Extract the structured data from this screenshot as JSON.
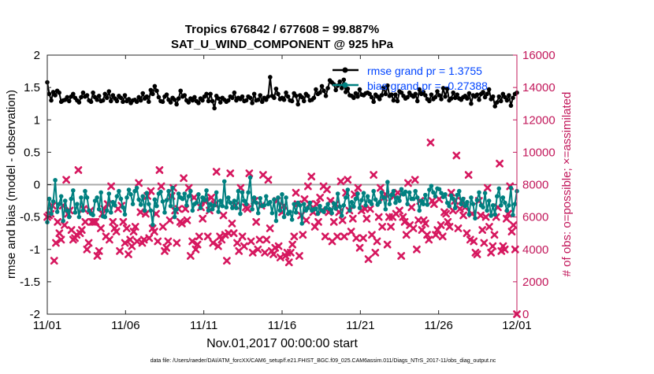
{
  "chart_data": {
    "type": "line",
    "title_line1": "Tropics 676842 / 677608 = 99.887%",
    "title_line2": "SAT_U_WIND_COMPONENT @ 925 hPa",
    "xlabel": "Nov.01,2017 00:00:00 start",
    "ylabel_left": "rmse and bias (model - observation)",
    "ylabel_right": "# of obs: o=possible; ×=assimilated",
    "footnote": "data file: /Users/raeder/DAI/ATM_forcXX/CAM6_setup/f.e21.FHIST_BGC.f09_025.CAM6assim.011/Diags_NTrS_2017-11/obs_diag_output.nc",
    "x_range": [
      0,
      30
    ],
    "x_ticks": [
      0,
      5,
      10,
      15,
      20,
      25,
      30
    ],
    "x_tick_labels": [
      "11/01",
      "11/06",
      "11/11",
      "11/16",
      "11/21",
      "11/26",
      "12/01"
    ],
    "ylim_left": [
      -2,
      2
    ],
    "yticks_left": [
      "2",
      "1.5",
      "1",
      "0.5",
      "0",
      "-0.5",
      "-1",
      "-1.5",
      "-2"
    ],
    "ylim_right": [
      0,
      16000
    ],
    "yticks_right": [
      "16000",
      "14000",
      "12000",
      "10000",
      "8000",
      "6000",
      "4000",
      "2000",
      "0"
    ],
    "legend": [
      {
        "label": "rmse grand pr = 1.3755",
        "color": "#000000"
      },
      {
        "label": "bias grand pr = -0.27388",
        "color": "#008080"
      }
    ],
    "colors": {
      "rmse": "#000000",
      "bias": "#008080",
      "obs": "#d6185f",
      "axis_right": "#c2185b",
      "legend_text": "#0044ff",
      "zero_line": "#aaaaaa"
    },
    "series": [
      {
        "name": "rmse",
        "values": [
          1.58,
          1.4,
          1.3,
          1.43,
          1.38,
          1.45,
          1.42,
          1.28,
          1.3,
          1.31,
          1.35,
          1.29,
          1.36,
          1.4,
          1.34,
          1.3,
          1.27,
          1.35,
          1.42,
          1.36,
          1.38,
          1.3,
          1.28,
          1.42,
          1.35,
          1.31,
          1.37,
          1.29,
          1.3,
          1.4,
          1.34,
          1.44,
          1.29,
          1.38,
          1.33,
          1.29,
          1.37,
          1.34,
          1.28,
          1.38,
          1.29,
          1.32,
          1.26,
          1.3,
          1.31,
          1.28,
          1.35,
          1.3,
          1.41,
          1.33,
          1.36,
          1.28,
          1.46,
          1.4,
          1.52,
          1.45,
          1.35,
          1.29,
          1.28,
          1.36,
          1.39,
          1.31,
          1.27,
          1.34,
          1.31,
          1.24,
          1.33,
          1.45,
          1.36,
          1.38,
          1.3,
          1.27,
          1.33,
          1.3,
          1.35,
          1.29,
          1.26,
          1.33,
          1.3,
          1.36,
          1.4,
          1.29,
          1.4,
          1.29,
          1.18,
          1.37,
          1.33,
          1.27,
          1.34,
          1.31,
          1.28,
          1.3,
          1.36,
          1.34,
          1.42,
          1.3,
          1.34,
          1.32,
          1.36,
          1.29,
          1.3,
          1.36,
          1.34,
          1.26,
          1.4,
          1.3,
          1.31,
          1.38,
          1.28,
          1.34,
          1.31,
          1.36,
          1.66,
          1.37,
          1.34,
          1.48,
          1.4,
          1.32,
          1.34,
          1.31,
          1.42,
          1.36,
          1.3,
          1.29,
          1.41,
          1.37,
          1.24,
          1.38,
          1.35,
          1.29,
          1.4,
          1.37,
          1.3,
          1.31,
          1.34,
          1.47,
          1.4,
          1.42,
          1.52,
          1.45,
          1.37,
          1.49,
          1.61,
          1.58,
          1.55,
          1.46,
          1.53,
          1.59,
          1.49,
          1.62,
          1.43,
          1.48,
          1.38,
          1.37,
          1.34,
          1.41,
          1.36,
          1.47,
          1.39,
          1.38,
          1.41,
          1.42,
          1.4,
          1.35,
          1.28,
          1.39,
          1.36,
          1.32,
          1.38,
          1.5,
          1.4,
          1.53,
          1.37,
          1.39,
          1.3,
          1.39,
          1.29,
          1.44,
          1.42,
          1.37,
          1.33,
          1.35,
          1.42,
          1.38,
          1.36,
          1.4,
          1.29,
          1.47,
          1.4,
          1.43,
          1.38,
          1.32,
          1.29,
          1.39,
          1.32,
          1.35,
          1.44,
          1.38,
          1.32,
          1.49,
          1.36,
          1.48,
          1.3,
          1.33,
          1.42,
          1.34,
          1.39,
          1.33,
          1.31,
          1.35,
          1.37,
          1.33,
          1.41,
          1.25,
          1.38,
          1.36,
          1.39,
          1.31,
          1.4,
          1.43,
          1.35,
          1.4,
          1.47,
          1.32,
          1.36,
          1.21,
          1.27,
          1.36,
          1.29,
          1.4,
          1.35,
          1.3,
          1.38,
          1.22,
          1.34,
          1.4,
          1.42
        ]
      },
      {
        "name": "bias",
        "values": [
          -0.58,
          -0.22,
          -0.45,
          -0.26,
          0.07,
          -0.42,
          -0.3,
          -0.18,
          -0.56,
          -0.25,
          -0.4,
          -0.5,
          -0.22,
          -0.09,
          -0.43,
          -0.3,
          -0.5,
          -0.2,
          -0.4,
          -0.1,
          -0.2,
          -0.4,
          -0.45,
          -0.47,
          -0.25,
          -0.2,
          -0.38,
          -0.12,
          -0.49,
          -0.5,
          -0.4,
          -0.14,
          -0.43,
          -0.27,
          -0.32,
          -0.18,
          -0.1,
          -0.22,
          -0.35,
          -0.46,
          -0.2,
          -0.08,
          -0.15,
          -0.3,
          -0.1,
          -0.05,
          -0.23,
          -0.31,
          -0.18,
          -0.4,
          -0.13,
          -0.3,
          -0.4,
          -0.62,
          -0.23,
          -0.33,
          -0.14,
          -0.11,
          -0.26,
          -0.43,
          -0.24,
          -0.1,
          -0.33,
          -0.05,
          -0.5,
          -0.38,
          -0.14,
          -0.2,
          -0.22,
          -0.14,
          -0.32,
          -0.18,
          -0.1,
          -0.4,
          -0.3,
          -0.28,
          -0.15,
          -0.36,
          -0.2,
          -0.24,
          -0.09,
          -0.4,
          -0.3,
          -0.38,
          -0.32,
          -0.12,
          -0.42,
          -0.25,
          -0.33,
          0.05,
          -0.35,
          -0.2,
          -0.28,
          -0.36,
          -0.25,
          -0.36,
          -0.1,
          -0.45,
          -0.12,
          -0.25,
          -0.3,
          -0.12,
          0.11,
          -0.38,
          -0.2,
          -0.28,
          -0.44,
          -0.21,
          -0.33,
          -0.32,
          -0.18,
          -0.3,
          -0.27,
          -0.44,
          -0.23,
          -0.56,
          -0.2,
          -0.4,
          -0.15,
          -0.5,
          -0.2,
          -0.45,
          -0.42,
          -0.54,
          -0.3,
          -0.43,
          -0.28,
          -0.32,
          -0.6,
          -0.3,
          -0.4,
          -0.36,
          -0.28,
          -0.4,
          -0.38,
          -0.37,
          -0.45,
          -0.33,
          -0.4,
          -0.42,
          -0.36,
          -0.3,
          -0.38,
          -0.44,
          -0.29,
          -0.37,
          -0.14,
          -0.34,
          -0.48,
          -0.32,
          -0.2,
          -0.08,
          -0.4,
          -0.27,
          -0.34,
          -0.22,
          -0.14,
          -0.36,
          -0.24,
          -0.13,
          -0.32,
          -0.18,
          -0.26,
          -0.3,
          -0.1,
          -0.23,
          -0.31,
          -0.27,
          -0.12,
          -0.2,
          -0.38,
          0.04,
          -0.3,
          -0.16,
          -0.1,
          -0.28,
          -0.2,
          -0.25,
          -0.07,
          -0.15,
          -0.11,
          -0.3,
          -0.12,
          -0.22,
          -0.22,
          -0.1,
          -0.2,
          -0.4,
          -0.25,
          -0.3,
          -0.16,
          -0.31,
          -0.08,
          -0.02,
          -0.12,
          -0.18,
          -0.06,
          -0.07,
          -0.13,
          -0.19,
          -0.15,
          -0.28,
          -0.33,
          -0.17,
          -0.22,
          -0.36,
          -0.16,
          -0.1,
          -0.3,
          -0.22,
          -0.33,
          -0.27,
          -0.46,
          -0.2,
          -0.3,
          -0.52,
          -0.24,
          -0.12,
          -0.32,
          -0.35,
          -0.13,
          -0.4,
          -0.25,
          -0.48,
          -0.32,
          -0.46,
          -0.18,
          -0.06,
          -0.32,
          -0.2,
          -0.28,
          -0.4,
          -0.32,
          -0.05,
          -0.47,
          -0.3,
          -0.1
        ]
      },
      {
        "name": "obs_assimilated",
        "values": [
          6000,
          6100,
          6200,
          6700,
          3300,
          4400,
          5700,
          5000,
          4600,
          6700,
          5500,
          8300,
          6200,
          6400,
          5200,
          4600,
          4700,
          4900,
          8900,
          5000,
          5200,
          6500,
          5700,
          4000,
          4400,
          6400,
          5700,
          5700,
          5700,
          3600,
          3900,
          5300,
          6200,
          6500,
          4800,
          6800,
          4600,
          7900,
          5700,
          5300,
          5100,
          6500,
          3900,
          6700,
          5700,
          4400,
          5300,
          3700,
          4600,
          4200,
          5100,
          5400,
          4500,
          8100,
          6300,
          4400,
          4600,
          6200,
          7300,
          4700,
          7600,
          5300,
          5100,
          6200,
          4500,
          8900,
          7900,
          5400,
          3900,
          4100,
          4500,
          5800,
          7300,
          7800,
          6400,
          4400,
          6500,
          5700,
          5600,
          8400,
          6500,
          5800,
          7800,
          3600,
          4500,
          7200,
          4000,
          4300,
          4800,
          6600,
          5900,
          7000,
          7000,
          4800,
          6400,
          7200,
          4400,
          6800,
          8800,
          4200,
          4800,
          4600,
          6100,
          4900,
          3300,
          5000,
          8700,
          5600,
          5000,
          6700,
          4400,
          3900,
          7800,
          4800,
          4200,
          6600,
          6500,
          8700,
          4500,
          3800,
          7000,
          5700,
          4000,
          4600,
          6700,
          8600,
          3800,
          4600,
          8300,
          5300,
          3900,
          3700,
          4100,
          7000,
          4200,
          3500,
          6300,
          6700,
          3600,
          3800,
          3200,
          3800,
          4300,
          4800,
          7500,
          6800,
          3600,
          6100,
          4900,
          7100,
          5800,
          7900,
          6800,
          8500,
          6300,
          5400,
          6800,
          5700,
          7200,
          6400,
          7900,
          4800,
          7700,
          6300,
          7000,
          4500,
          5700,
          6800,
          4800,
          6300,
          8200,
          5800,
          4800,
          7500,
          8300,
          6400,
          5100,
          5900,
          7400,
          4700,
          7800,
          4100,
          6400,
          4700,
          6500,
          5900,
          3400,
          6500,
          4900,
          8600,
          3800,
          4500,
          6000,
          7800,
          5400,
          7200,
          7400,
          4300,
          6000,
          5400,
          6000,
          7300,
          6200,
          7500,
          6400,
          3600,
          6000,
          5700,
          4900,
          8100,
          5500,
          6600,
          5300,
          8300,
          4000,
          5800,
          7000,
          5200,
          5800,
          5600,
          4900,
          4600,
          10600,
          7000,
          6800,
          4900,
          5200,
          7100,
          5500,
          4800,
          6300,
          6200,
          5700,
          5400,
          7500,
          6400,
          7000,
          9800,
          5300,
          6500,
          7000,
          6100,
          6600,
          5000,
          8600,
          4600,
          6200,
          4500,
          3800,
          3700,
          7000,
          6100,
          5200,
          4400,
          6000,
          7800,
          5400,
          3800,
          4200,
          4900,
          6000,
          6600,
          9300,
          3900,
          4200,
          4000,
          5900,
          6200,
          7900,
          5100,
          5500,
          4000,
          0
        ]
      }
    ]
  }
}
